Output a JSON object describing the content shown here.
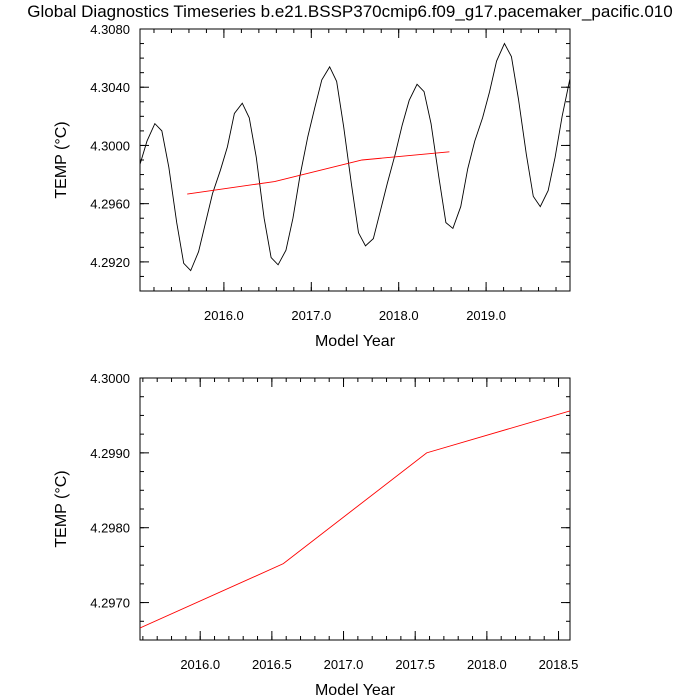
{
  "figure": {
    "title": "Global Diagnostics Timeseries b.e21.BSSP370cmip6.f09_g17.pacemaker_pacific.010"
  },
  "chart_data": [
    {
      "type": "line",
      "xlabel": "Model Year",
      "ylabel": "TEMP (°C)",
      "xlim": [
        2015.04,
        2019.96
      ],
      "ylim": [
        4.29,
        4.308
      ],
      "x_ticks": [
        2016.0,
        2017.0,
        2018.0,
        2019.0
      ],
      "x_tick_labels": [
        "2016.0",
        "2017.0",
        "2018.0",
        "2019.0"
      ],
      "y_ticks": [
        4.292,
        4.296,
        4.3,
        4.304,
        4.308
      ],
      "y_tick_labels": [
        "4.2920",
        "4.2960",
        "4.3000",
        "4.3040",
        "4.3080"
      ],
      "grid": false,
      "series": [
        {
          "color": "#000000",
          "x": [
            2015.04,
            2015.12,
            2015.21,
            2015.29,
            2015.37,
            2015.46,
            2015.54,
            2015.62,
            2015.71,
            2015.79,
            2015.87,
            2015.96,
            2016.04,
            2016.12,
            2016.21,
            2016.29,
            2016.37,
            2016.46,
            2016.54,
            2016.62,
            2016.71,
            2016.79,
            2016.87,
            2016.96,
            2017.04,
            2017.12,
            2017.21,
            2017.29,
            2017.37,
            2017.46,
            2017.54,
            2017.62,
            2017.71,
            2017.79,
            2017.87,
            2017.96,
            2018.04,
            2018.12,
            2018.21,
            2018.29,
            2018.37,
            2018.46,
            2018.54,
            2018.62,
            2018.71,
            2018.79,
            2018.87,
            2018.96,
            2019.04,
            2019.12,
            2019.21,
            2019.29,
            2019.37,
            2019.46,
            2019.54,
            2019.62,
            2019.71,
            2019.79,
            2019.87,
            2019.96
          ],
          "y": [
            4.2987,
            4.3003,
            4.3015,
            4.301,
            4.2985,
            4.2947,
            4.2919,
            4.2914,
            4.2927,
            4.2947,
            4.2967,
            4.2983,
            4.2999,
            4.3022,
            4.3029,
            4.3019,
            4.2992,
            4.295,
            4.2923,
            4.2918,
            4.2928,
            4.295,
            4.2979,
            4.3006,
            4.3026,
            4.3045,
            4.3054,
            4.3044,
            4.3013,
            4.2973,
            4.294,
            4.2931,
            4.2936,
            4.2955,
            4.2974,
            4.2994,
            4.3014,
            4.3031,
            4.3042,
            4.3037,
            4.3015,
            4.2978,
            4.2947,
            4.2943,
            4.2958,
            4.2984,
            4.3003,
            4.3019,
            4.3037,
            4.3058,
            4.307,
            4.3061,
            4.3032,
            4.2994,
            4.2965,
            4.2958,
            4.2969,
            4.2992,
            4.302,
            4.3046
          ]
        },
        {
          "color": "#ff0000",
          "x": [
            2015.58,
            2016.58,
            2017.58,
            2018.58
          ],
          "y": [
            4.29666,
            4.29752,
            4.299,
            4.29956
          ]
        }
      ]
    },
    {
      "type": "line",
      "xlabel": "Model Year",
      "ylabel": "TEMP (°C)",
      "xlim": [
        2015.58,
        2018.58
      ],
      "ylim": [
        4.2965,
        4.3
      ],
      "x_ticks": [
        2016.0,
        2016.5,
        2017.0,
        2017.5,
        2018.0,
        2018.5
      ],
      "x_tick_labels": [
        "2016.0",
        "2016.5",
        "2017.0",
        "2017.5",
        "2018.0",
        "2018.5"
      ],
      "y_ticks": [
        4.297,
        4.298,
        4.299,
        4.3
      ],
      "y_tick_labels": [
        "4.2970",
        "4.2980",
        "4.2990",
        "4.3000"
      ],
      "grid": false,
      "series": [
        {
          "color": "#ff0000",
          "x": [
            2015.58,
            2016.58,
            2017.58,
            2018.58
          ],
          "y": [
            4.29666,
            4.29752,
            4.299,
            4.29956
          ]
        }
      ]
    }
  ]
}
